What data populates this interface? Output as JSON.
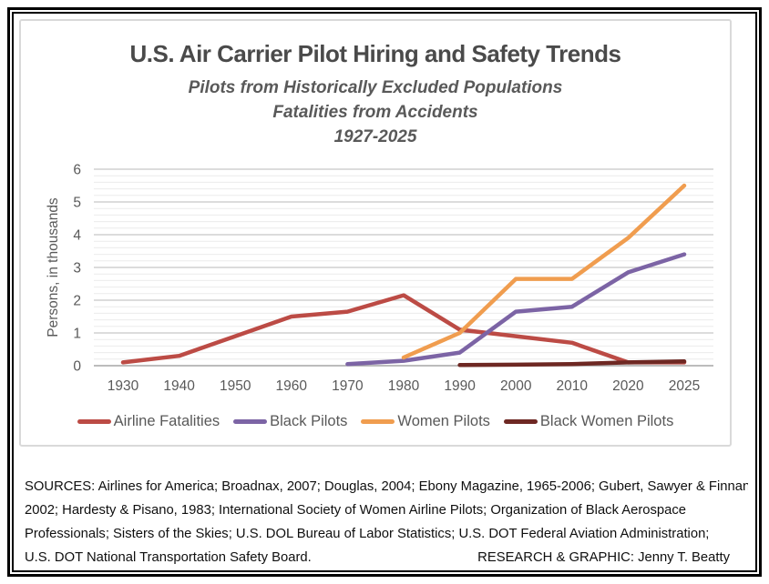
{
  "chart": {
    "title": "U.S. Air Carrier Pilot Hiring and Safety Trends",
    "subtitle1": "Pilots from Historically Excluded Populations",
    "subtitle2": "Fatalities from Accidents",
    "subtitle3": "1927-2025"
  },
  "chart_data": {
    "type": "line",
    "title": "U.S. Air Carrier Pilot Hiring and Safety Trends",
    "subtitles": [
      "Pilots from Historically Excluded Populations",
      "Fatalities from Accidents",
      "1927-2025"
    ],
    "categories": [
      "1930",
      "1940",
      "1950",
      "1960",
      "1970",
      "1980",
      "1990",
      "2000",
      "2010",
      "2020",
      "2025"
    ],
    "xlabel": "",
    "ylabel": "Persons, in thousands",
    "ylim": [
      0,
      6
    ],
    "y_major_step": 1,
    "y_minor_step": 0.2,
    "grid": true,
    "legend_position": "bottom",
    "units": "thousands of persons",
    "series": [
      {
        "name": "Airline Fatalities",
        "color": "#BC4B45",
        "values": [
          0.1,
          0.3,
          0.9,
          1.5,
          1.65,
          2.15,
          1.1,
          0.9,
          0.7,
          0.1,
          0.1
        ]
      },
      {
        "name": "Black Pilots",
        "color": "#7C64A5",
        "values": [
          null,
          null,
          null,
          null,
          0.05,
          0.15,
          0.4,
          1.65,
          1.8,
          2.85,
          3.4
        ]
      },
      {
        "name": "Women Pilots",
        "color": "#F09D4F",
        "values": [
          null,
          null,
          null,
          null,
          null,
          0.25,
          1.0,
          2.65,
          2.65,
          3.9,
          5.5
        ]
      },
      {
        "name": "Black Women Pilots",
        "color": "#6E2823",
        "values": [
          null,
          null,
          null,
          null,
          null,
          null,
          0.02,
          0.03,
          0.05,
          0.1,
          0.13
        ]
      }
    ],
    "colors": {
      "axis_text": "#595959",
      "major_gridline": "#C8C8C8",
      "minor_gridline": "#EBEBEB",
      "axis_line": "#A6A6A6",
      "title_text": "#4a4a4a",
      "chart_border": "#D9D9D9",
      "frame_border": "#000000"
    }
  },
  "sources": {
    "lines": [
      "SOURCES: Airlines for America; Broadnax, 2007; Douglas, 2004; Ebony Magazine, 1965-2006; Gubert, Sawyer & Finnan,",
      "2002; Hardesty & Pisano, 1983; International Society of Women Airline Pilots; Organization of Black Aerospace",
      "Professionals; Sisters of the Skies; U.S. DOL Bureau of Labor Statistics; U.S. DOT Federal Aviation Administration;",
      "U.S. DOT National Transportation Safety Board."
    ],
    "credit": "RESEARCH & GRAPHIC: Jenny T. Beatty"
  }
}
